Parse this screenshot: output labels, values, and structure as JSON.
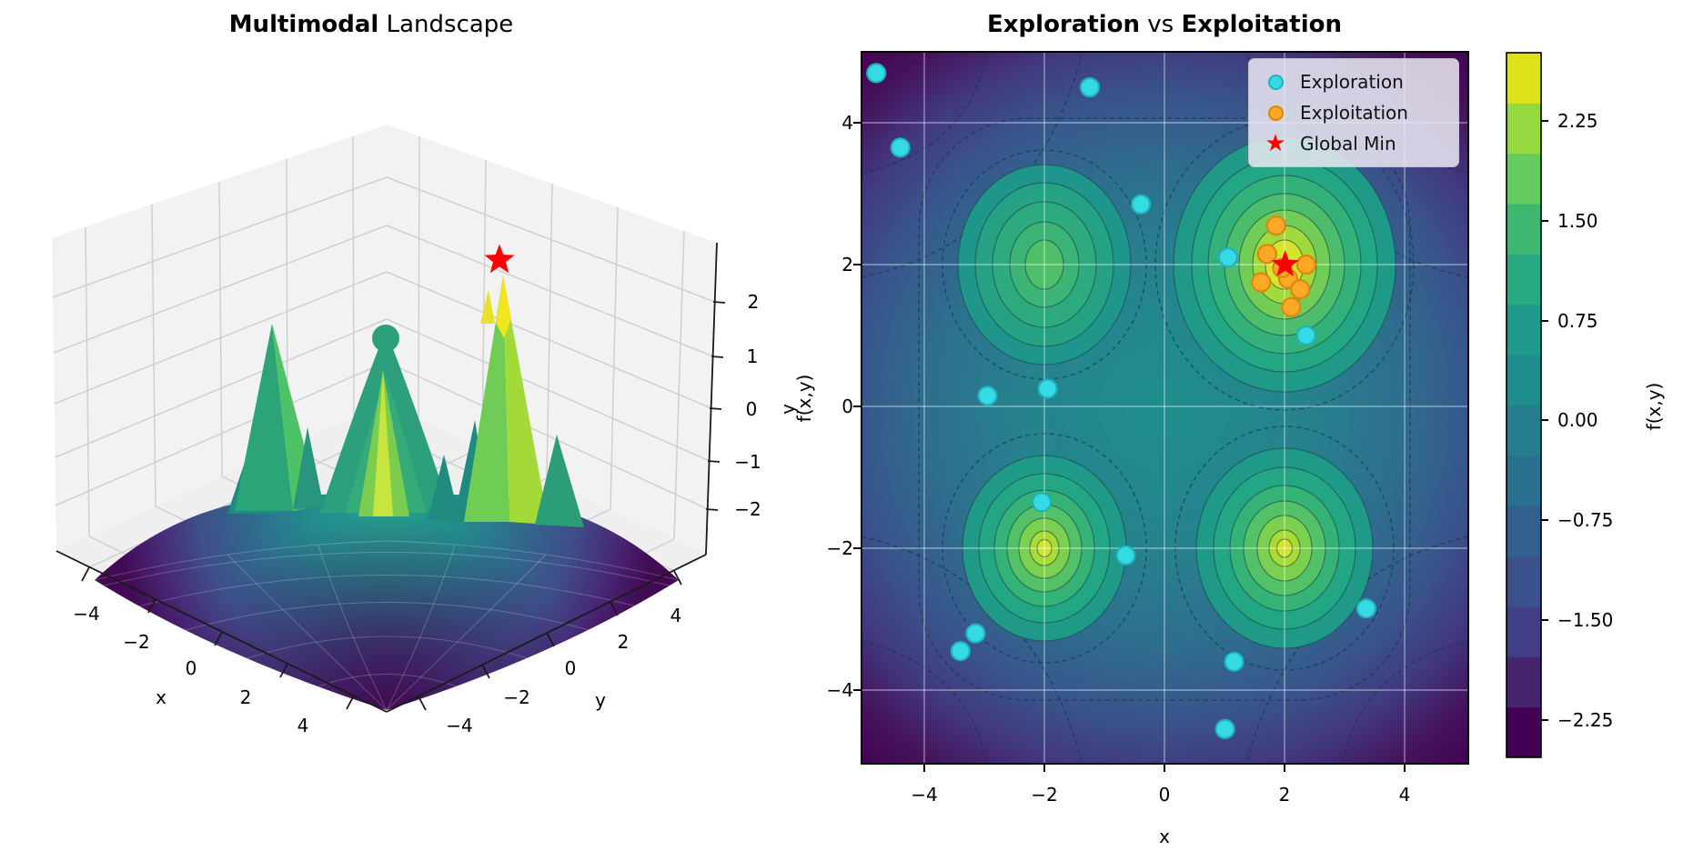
{
  "left_plot": {
    "title_bold": "Multimodal",
    "title_rest": " Landscape",
    "xlabel": "x",
    "ylabel": "y",
    "zlabel": "f(x,y)"
  },
  "right_plot": {
    "title_bold1": "Exploration",
    "title_mid": " vs ",
    "title_bold2": "Exploitation",
    "xlabel": "x",
    "ylabel": "y",
    "colorbar_label": "f(x,y)"
  },
  "chart_data": [
    {
      "type": "surface3d",
      "title": "Multimodal Landscape",
      "xlabel": "x",
      "ylabel": "y",
      "zlabel": "f(x,y)",
      "xlim": [
        -5,
        5
      ],
      "ylim": [
        -5,
        5
      ],
      "xticks": [
        -4,
        -2,
        0,
        2,
        4
      ],
      "yticks": [
        -4,
        -2,
        0,
        2,
        4
      ],
      "zticks": [
        2,
        1,
        0,
        -1,
        -2
      ],
      "colormap": "viridis",
      "surface_min_at_corners": -2.5,
      "peaks": [
        {
          "x": -2,
          "y": -2,
          "z": 1.6
        },
        {
          "x": -2,
          "y": 2,
          "z": 1.4
        },
        {
          "x": 2,
          "y": -2,
          "z": 1.5
        },
        {
          "x": 2,
          "y": 2,
          "z": 2.85,
          "is_global": true
        }
      ],
      "global_marker": {
        "x": 2,
        "y": 2,
        "z": 2.85,
        "marker": "star",
        "color": "#ff0000"
      }
    },
    {
      "type": "contour-scatter",
      "title": "Exploration vs Exploitation",
      "xlabel": "x",
      "ylabel": "y",
      "xlim": [
        -5,
        5
      ],
      "ylim": [
        -5,
        5
      ],
      "xticks": [
        -4,
        -2,
        0,
        2,
        4
      ],
      "yticks": [
        4,
        2,
        0,
        -2,
        -4
      ],
      "grid": true,
      "colormap": "viridis",
      "legend_position": "upper right",
      "local_maxima_blobs": [
        [
          -2,
          2
        ],
        [
          2,
          2
        ],
        [
          -2,
          -2
        ],
        [
          2,
          -2
        ]
      ],
      "colorbar": {
        "label": "f(x,y)",
        "ticks": [
          2.25,
          1.5,
          0.75,
          0.0,
          -0.75,
          -1.5,
          -2.25
        ],
        "range": [
          -2.5,
          2.76
        ],
        "band_colors": [
          "#440154",
          "#46256c",
          "#423e85",
          "#3b518b",
          "#32608e",
          "#2a6f8e",
          "#247e8e",
          "#1f8c8d",
          "#1f9a8a",
          "#27a983",
          "#3fb771",
          "#63cb5f",
          "#95d840",
          "#dde318"
        ]
      },
      "series": [
        {
          "name": "Exploration",
          "marker": "circle",
          "color": "#35dbe4",
          "edge": "#1fb1bd",
          "points": [
            [
              -4.8,
              4.7
            ],
            [
              -4.4,
              3.65
            ],
            [
              -1.25,
              4.5
            ],
            [
              -0.4,
              2.85
            ],
            [
              -2.95,
              0.15
            ],
            [
              -1.95,
              0.25
            ],
            [
              1.05,
              2.1
            ],
            [
              2.35,
              1.0
            ],
            [
              -2.05,
              -1.35
            ],
            [
              -0.65,
              -2.1
            ],
            [
              -3.15,
              -3.2
            ],
            [
              -3.4,
              -3.45
            ],
            [
              3.35,
              -2.85
            ],
            [
              1.15,
              -3.6
            ],
            [
              1.0,
              -4.55
            ]
          ]
        },
        {
          "name": "Exploitation",
          "marker": "circle",
          "color": "#ffa726",
          "edge": "#d9890a",
          "points": [
            [
              1.85,
              2.55
            ],
            [
              1.7,
              2.15
            ],
            [
              1.6,
              1.75
            ],
            [
              2.05,
              1.8
            ],
            [
              2.25,
              1.65
            ],
            [
              2.1,
              1.4
            ],
            [
              2.35,
              2.0
            ],
            [
              1.95,
              1.95
            ]
          ]
        },
        {
          "name": "Global Min",
          "marker": "star",
          "color": "#ff0000",
          "points": [
            [
              2,
              2
            ]
          ]
        }
      ]
    }
  ]
}
